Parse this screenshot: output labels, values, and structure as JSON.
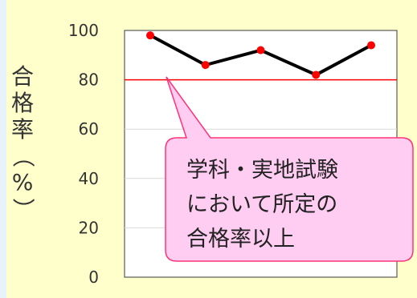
{
  "chart_data": {
    "type": "line",
    "ylabel": "合格率（%）",
    "ylim": [
      0,
      100
    ],
    "yticks": [
      0,
      20,
      40,
      60,
      80,
      100
    ],
    "grid": true,
    "series": [
      {
        "values": [
          98,
          86,
          92,
          82,
          94
        ]
      }
    ],
    "reference_line": {
      "value": 80
    },
    "annotation": {
      "lines": [
        "学科・実地試験",
        "において所定の",
        "合格率以上"
      ]
    }
  },
  "colors": {
    "background": "#ffffcc",
    "plot_background": "#ffffff",
    "series_line": "#000000",
    "series_marker": "#ff0000",
    "reference_line": "#ff0000",
    "callout_fill": "#ffccf2",
    "callout_border": "#ff3377",
    "gridline": "#d9d9d9"
  }
}
